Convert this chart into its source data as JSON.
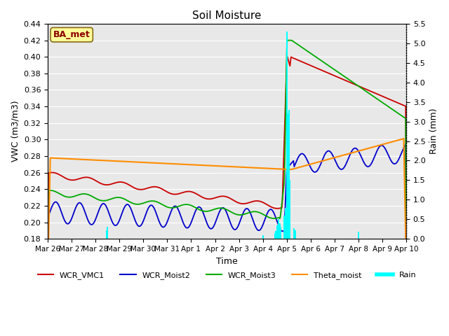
{
  "title": "Soil Moisture",
  "xlabel": "Time",
  "ylabel_left": "VWC (m3/m3)",
  "ylabel_right": "Rain (mm)",
  "ylim_left": [
    0.18,
    0.44
  ],
  "ylim_right": [
    0.0,
    5.5
  ],
  "annotation": "BA_met",
  "annotation_color": "#8B0000",
  "annotation_bg": "#FFFF99",
  "annotation_border": "#8B6914",
  "bg_color": "#E8E8E8",
  "grid_color": "#FFFFFF"
}
